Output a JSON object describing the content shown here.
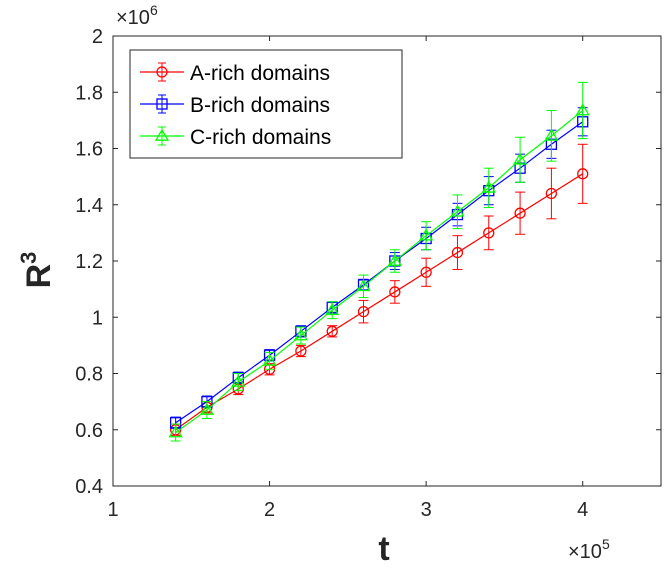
{
  "chart_data": {
    "type": "line",
    "xlabel": "t",
    "ylabel": "R",
    "ylabel_superscript": "3",
    "x_exponent_label": "×10",
    "x_exponent_power": "5",
    "y_exponent_label": "×10",
    "y_exponent_power": "6",
    "xlim": [
      1,
      4.5
    ],
    "ylim": [
      0.4,
      2.0
    ],
    "x_ticks": [
      1,
      2,
      3,
      4
    ],
    "y_ticks": [
      0.4,
      0.6,
      0.8,
      1.0,
      1.2,
      1.4,
      1.6,
      1.8,
      2.0
    ],
    "x_tick_labels": [
      "1",
      "2",
      "3",
      "4"
    ],
    "y_tick_labels": [
      "0.4",
      "0.6",
      "0.8",
      "1",
      "1.2",
      "1.4",
      "1.6",
      "1.8",
      "2"
    ],
    "grid": false,
    "legend_position": "top-left",
    "x": [
      1.4,
      1.6,
      1.8,
      2.0,
      2.2,
      2.4,
      2.6,
      2.8,
      3.0,
      3.2,
      3.4,
      3.6,
      3.8,
      4.0
    ],
    "series": [
      {
        "name": "A-rich domains",
        "color": "#ff0000",
        "marker": "circle",
        "values": [
          0.6,
          0.68,
          0.745,
          0.815,
          0.88,
          0.95,
          1.02,
          1.09,
          1.16,
          1.23,
          1.3,
          1.37,
          1.44,
          1.51
        ],
        "errors": [
          0.02,
          0.02,
          0.02,
          0.02,
          0.02,
          0.02,
          0.04,
          0.04,
          0.05,
          0.06,
          0.06,
          0.075,
          0.09,
          0.105
        ]
      },
      {
        "name": "B-rich domains",
        "color": "#0000ff",
        "marker": "square",
        "values": [
          0.625,
          0.7,
          0.785,
          0.865,
          0.95,
          1.035,
          1.115,
          1.2,
          1.28,
          1.365,
          1.45,
          1.53,
          1.615,
          1.695
        ],
        "errors": [
          0.02,
          0.02,
          0.02,
          0.02,
          0.02,
          0.02,
          0.02,
          0.03,
          0.04,
          0.04,
          0.05,
          0.05,
          0.05,
          0.05
        ]
      },
      {
        "name": "C-rich domains",
        "color": "#00ff00",
        "marker": "triangle",
        "values": [
          0.59,
          0.67,
          0.77,
          0.845,
          0.935,
          1.025,
          1.11,
          1.2,
          1.29,
          1.375,
          1.46,
          1.56,
          1.645,
          1.735
        ],
        "errors": [
          0.03,
          0.03,
          0.03,
          0.03,
          0.03,
          0.03,
          0.04,
          0.04,
          0.05,
          0.06,
          0.07,
          0.08,
          0.09,
          0.1
        ]
      }
    ]
  }
}
